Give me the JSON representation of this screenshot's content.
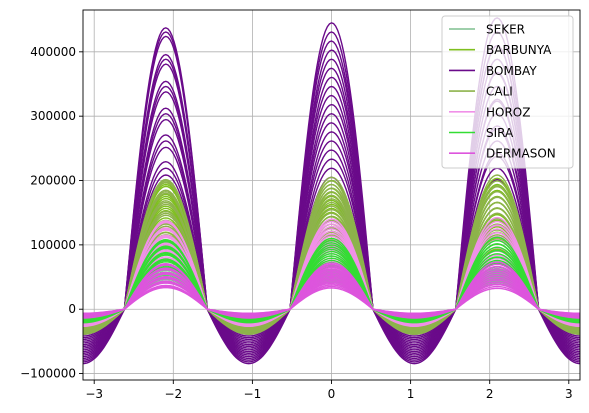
{
  "chart_data": {
    "type": "line",
    "title": "",
    "xlabel": "",
    "ylabel": "",
    "xlim": [
      -3.1416,
      3.1416
    ],
    "ylim": [
      -110000,
      465000
    ],
    "grid": true,
    "legend_position": "top-right",
    "x_ticks": [
      -3,
      -2,
      -1,
      0,
      1,
      2,
      3
    ],
    "x_tick_labels": [
      "−3",
      "−2",
      "−1",
      "0",
      "1",
      "2",
      "3"
    ],
    "y_ticks": [
      -100000,
      0,
      100000,
      200000,
      300000,
      400000
    ],
    "y_tick_labels": [
      "−100000",
      "0",
      "100000",
      "200000",
      "300000",
      "400000"
    ],
    "series": [
      {
        "name": "SEKER",
        "color": "#7fbf8f",
        "amplitude_range": [
          42000,
          62000
        ]
      },
      {
        "name": "BARBUNYA",
        "color": "#7fbf1f",
        "amplitude_range": [
          95000,
          200000
        ]
      },
      {
        "name": "BOMBAY",
        "color": "#6a0a8a",
        "amplitude_range": [
          205000,
          445000
        ]
      },
      {
        "name": "CALI",
        "color": "#8db34b",
        "amplitude_range": [
          110000,
          205000
        ]
      },
      {
        "name": "HOROZ",
        "color": "#f090e8",
        "amplitude_range": [
          75000,
          140000
        ]
      },
      {
        "name": "SIRA",
        "color": "#33dd33",
        "amplitude_range": [
          52000,
          110000
        ]
      },
      {
        "name": "DERMASON",
        "color": "#dd55dd",
        "amplitude_range": [
          33000,
          72000
        ]
      }
    ],
    "draw_order": [
      "BOMBAY",
      "BARBUNYA",
      "CALI",
      "HOROZ",
      "SIRA",
      "SEKER",
      "DERMASON"
    ]
  }
}
